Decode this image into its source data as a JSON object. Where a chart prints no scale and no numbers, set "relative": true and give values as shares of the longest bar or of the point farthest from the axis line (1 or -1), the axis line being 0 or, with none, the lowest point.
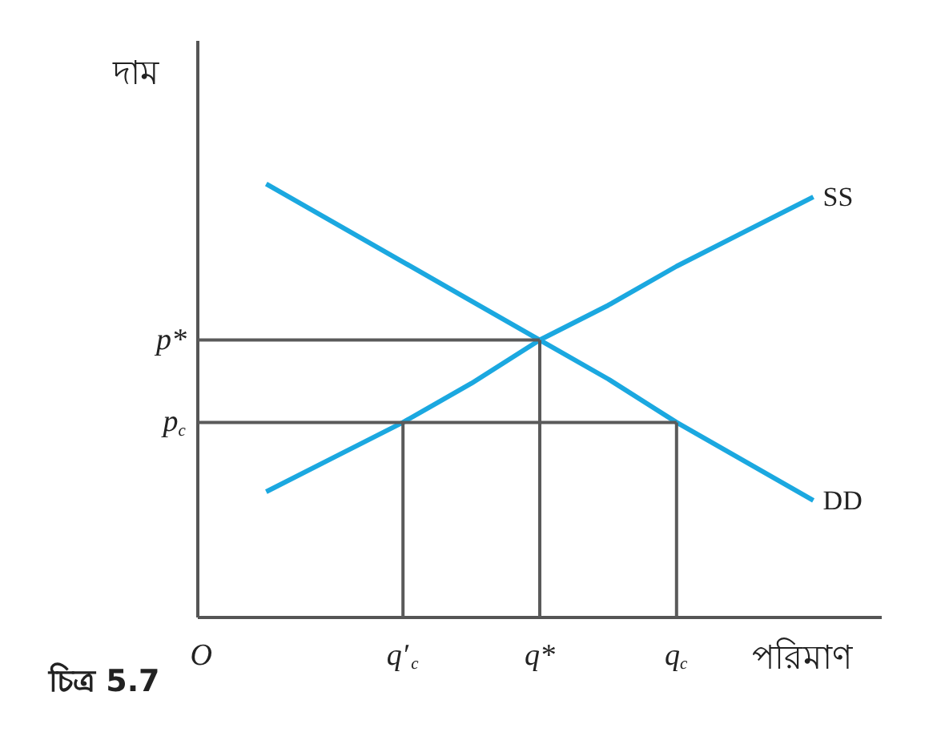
{
  "chart_data": {
    "type": "line",
    "relative": true,
    "xlabel": "পরিমাণ",
    "ylabel": "দাম",
    "categories": [
      "O",
      null,
      null,
      "q′$_{c}$",
      null,
      "q*",
      null,
      "q$_{c}$",
      null,
      null
    ],
    "ylim": [
      0,
      1.33
    ],
    "annotations": [
      {
        "text": "p$_{c}$",
        "x": "O",
        "y": 0.45
      },
      {
        "text": "p*",
        "x": "O",
        "y": 0.64
      },
      "চিত্র 5.7"
    ],
    "series": [
      {
        "name": "SS",
        "color": "#1ba8e0",
        "values": [
          null,
          0.29,
          0.37,
          0.45,
          0.54,
          0.64,
          0.72,
          0.81,
          0.89,
          0.97
        ]
      },
      {
        "name": "DD",
        "color": "#1ba8e0",
        "values": [
          null,
          1.0,
          0.91,
          0.82,
          0.73,
          0.64,
          0.55,
          0.45,
          0.36,
          0.27
        ]
      },
      {
        "color": "#5a5a5a",
        "x": [
          "O",
          "q*"
        ],
        "values": [
          0.64,
          0.64
        ]
      },
      {
        "color": "#5a5a5a",
        "x": [
          "O",
          "q$_{c}$"
        ],
        "values": [
          0.45,
          0.45
        ]
      },
      {
        "color": "#5a5a5a",
        "x": [
          "q′$_{c}$",
          "q′$_{c}$"
        ],
        "values": [
          0,
          0.45
        ]
      },
      {
        "color": "#5a5a5a",
        "x": [
          "q*",
          "q*"
        ],
        "values": [
          0,
          0.64
        ]
      },
      {
        "color": "#5a5a5a",
        "x": [
          "q$_{c}$",
          "q$_{c}$"
        ],
        "values": [
          0,
          0.45
        ]
      }
    ]
  }
}
